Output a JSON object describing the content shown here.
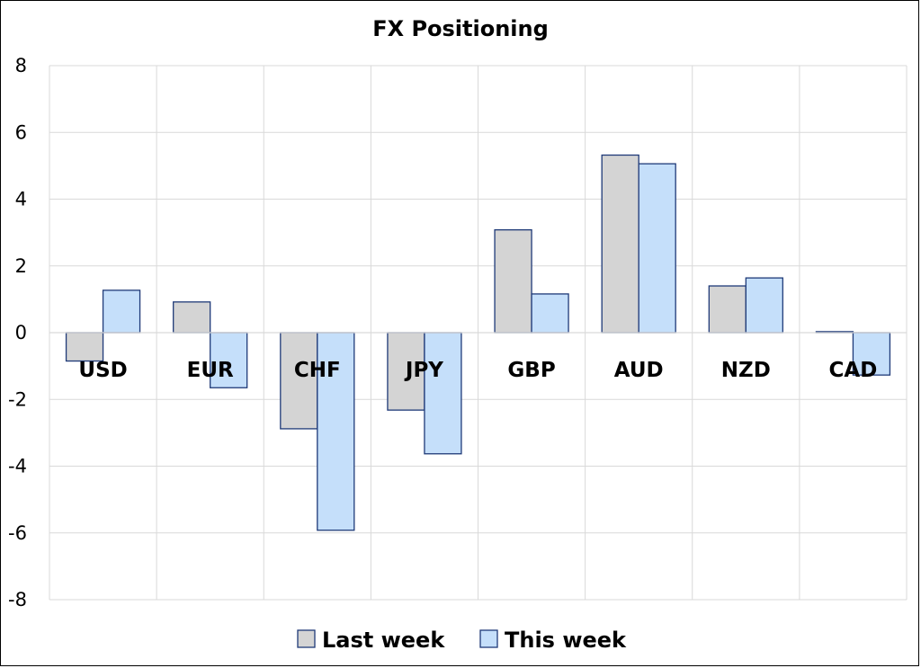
{
  "chart_data": {
    "type": "bar",
    "title": "FX Positioning",
    "categories": [
      "USD",
      "EUR",
      "CHF",
      "JPY",
      "GBP",
      "AUD",
      "NZD",
      "CAD"
    ],
    "series": [
      {
        "name": "Last week",
        "values": [
          -0.85,
          0.92,
          -2.88,
          -2.32,
          3.08,
          5.32,
          1.4,
          0.03
        ],
        "color": "#d4d4d4"
      },
      {
        "name": "This week",
        "values": [
          1.27,
          -1.65,
          -5.92,
          -3.63,
          1.16,
          5.06,
          1.64,
          -1.27
        ],
        "color": "#c5dffa"
      }
    ],
    "ylim": [
      -8,
      8
    ],
    "yticks": [
      8,
      6,
      4,
      2,
      0,
      -2,
      -4,
      -6,
      -8
    ],
    "grid": true,
    "legend_position": "bottom",
    "bar_edge_color": "#1f3a78"
  }
}
